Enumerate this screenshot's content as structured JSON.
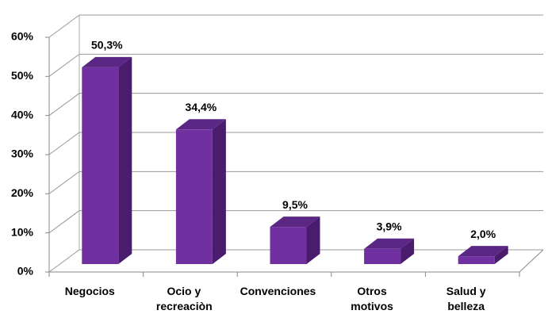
{
  "chart_data": {
    "type": "bar",
    "categories": [
      "Negocios",
      "Ocio y recreaciòn",
      "Convenciones",
      "Otros motivos",
      "Salud y belleza"
    ],
    "values": [
      50.3,
      34.4,
      9.5,
      3.9,
      2.0
    ],
    "value_labels": [
      "50,3%",
      "34,4%",
      "9,5%",
      "3,9%",
      "2,0%"
    ],
    "color": "#7030a0",
    "ylim": [
      0,
      60
    ],
    "yticks": [
      {
        "value": 0,
        "label": "0%"
      },
      {
        "value": 10,
        "label": "10%"
      },
      {
        "value": 20,
        "label": "20%"
      },
      {
        "value": 30,
        "label": "30%"
      },
      {
        "value": 40,
        "label": "40%"
      },
      {
        "value": 50,
        "label": "50%"
      },
      {
        "value": 60,
        "label": "60%"
      }
    ],
    "grid": true
  }
}
